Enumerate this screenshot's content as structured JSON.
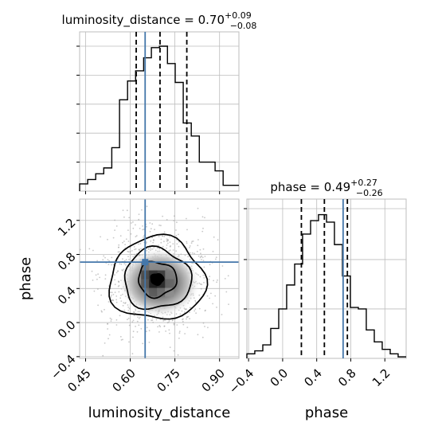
{
  "chart_data": {
    "type": "corner",
    "parameters": [
      "luminosity_distance",
      "phase"
    ],
    "truths": {
      "luminosity_distance": 0.65,
      "phase": 0.71
    },
    "panels": [
      {
        "id": "hist_luminosity_distance",
        "type": "histogram",
        "title": {
          "main": "luminosity_distance = 0.70",
          "sup": "+0.09",
          "sub": "−0.08"
        },
        "quantiles": [
          0.62,
          0.7,
          0.79
        ],
        "truth": 0.65,
        "xlim": [
          0.43,
          0.965
        ],
        "bin_edges": [
          0.43,
          0.457,
          0.484,
          0.511,
          0.538,
          0.564,
          0.591,
          0.618,
          0.645,
          0.671,
          0.698,
          0.725,
          0.751,
          0.778,
          0.805,
          0.832,
          0.858,
          0.885,
          0.912,
          0.939,
          0.965
        ],
        "counts": [
          0.05,
          0.08,
          0.12,
          0.16,
          0.3,
          0.63,
          0.76,
          0.83,
          0.92,
          0.99,
          1.0,
          0.88,
          0.75,
          0.47,
          0.38,
          0.2,
          0.2,
          0.14,
          0.04,
          0.04
        ]
      },
      {
        "id": "hist_phase",
        "type": "histogram",
        "title": {
          "main": "phase = 0.49",
          "sup": "+0.27",
          "sub": "−0.26"
        },
        "quantiles": [
          0.22,
          0.49,
          0.76
        ],
        "truth": 0.71,
        "xlim": [
          -0.42,
          1.45
        ],
        "bin_edges": [
          -0.42,
          -0.327,
          -0.233,
          -0.14,
          -0.046,
          0.047,
          0.141,
          0.234,
          0.328,
          0.421,
          0.515,
          0.608,
          0.702,
          0.795,
          0.889,
          0.982,
          1.076,
          1.169,
          1.263,
          1.356,
          1.45
        ],
        "counts": [
          0.03,
          0.05,
          0.09,
          0.2,
          0.33,
          0.49,
          0.63,
          0.83,
          0.92,
          0.96,
          0.91,
          0.76,
          0.55,
          0.34,
          0.33,
          0.19,
          0.11,
          0.06,
          0.03,
          0.01
        ],
        "xticks": [
          "−0.4",
          "0.0",
          "0.4",
          "0.8",
          "1.2"
        ],
        "xtick_values": [
          -0.4,
          0.0,
          0.4,
          0.8,
          1.2
        ],
        "xlabel": "phase"
      },
      {
        "id": "joint_luminosity_distance_phase",
        "type": "2d_density",
        "xlim": [
          0.43,
          0.965
        ],
        "ylim": [
          -0.42,
          1.45
        ],
        "xticks": [
          "0.45",
          "0.60",
          "0.75",
          "0.90"
        ],
        "xtick_values": [
          0.45,
          0.6,
          0.75,
          0.9
        ],
        "yticks": [
          "−0.4",
          "0.0",
          "0.4",
          "0.8",
          "1.2"
        ],
        "ytick_values": [
          -0.4,
          0.0,
          0.4,
          0.8,
          1.2
        ],
        "xlabel": "luminosity_distance",
        "ylabel": "phase",
        "center": [
          0.69,
          0.51
        ],
        "contour_levels": [
          0.12,
          0.3,
          0.5,
          0.85
        ],
        "truth": [
          0.65,
          0.71
        ]
      }
    ],
    "grid": true,
    "colors": {
      "hist": "#000000",
      "truth": "#4477aa",
      "grid": "#bdbdbd",
      "density": "#4d4d4d"
    }
  }
}
